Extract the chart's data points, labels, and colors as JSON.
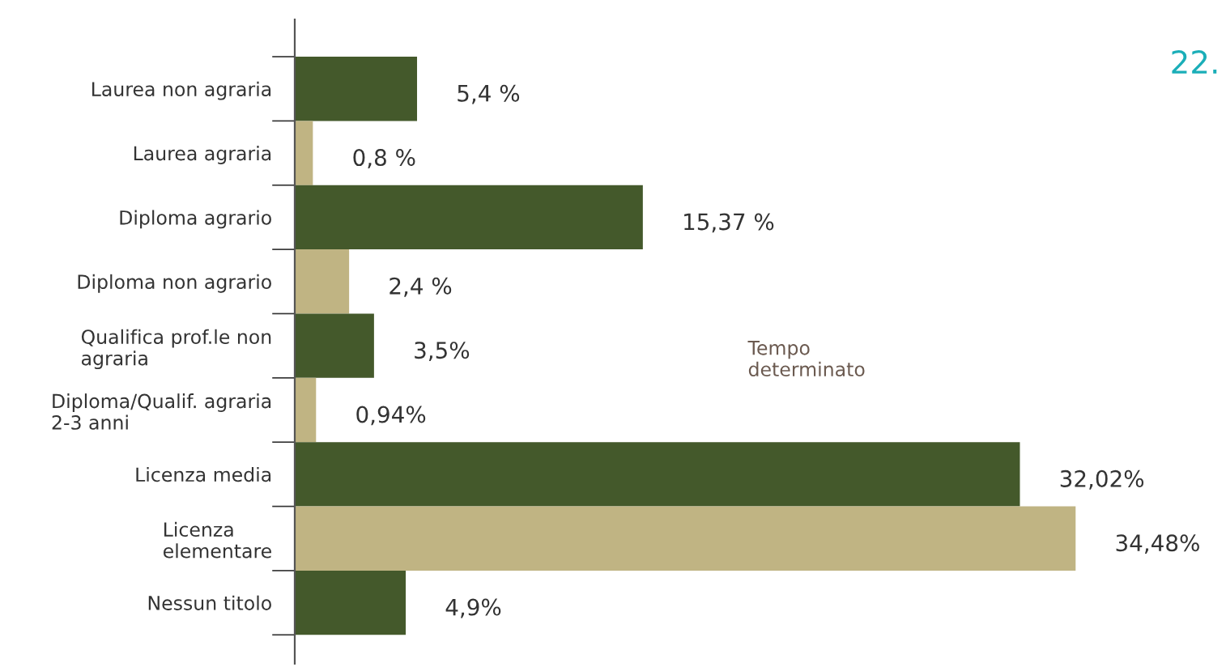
{
  "chart_data": {
    "type": "bar",
    "orientation": "horizontal",
    "categories": [
      "Laurea non agraria",
      "Laurea agraria",
      "Diploma agrario",
      "Diploma non agrario",
      "Qualifica prof.le non\nagraria",
      "Diploma/Qualif. agraria\n2-3 anni",
      "Licenza media",
      "Licenza\nelementare",
      "Nessun titolo"
    ],
    "values": [
      5.4,
      0.8,
      15.37,
      2.4,
      3.5,
      0.94,
      32.02,
      34.48,
      4.9
    ],
    "colors": [
      "#44592b",
      "#c0b483",
      "#44592b",
      "#c0b483",
      "#44592b",
      "#c0b483",
      "#44592b",
      "#c0b483",
      "#44592b"
    ],
    "value_labels": [
      "5,4 %",
      "0,8 %",
      "15,37 %",
      "2,4 %",
      "3,5%",
      "0,94%",
      "32,02%",
      "34,48%",
      "4,9%"
    ],
    "annotations": [
      "Tempo\ndeterminato",
      "22."
    ],
    "grid": false,
    "legend": false
  }
}
